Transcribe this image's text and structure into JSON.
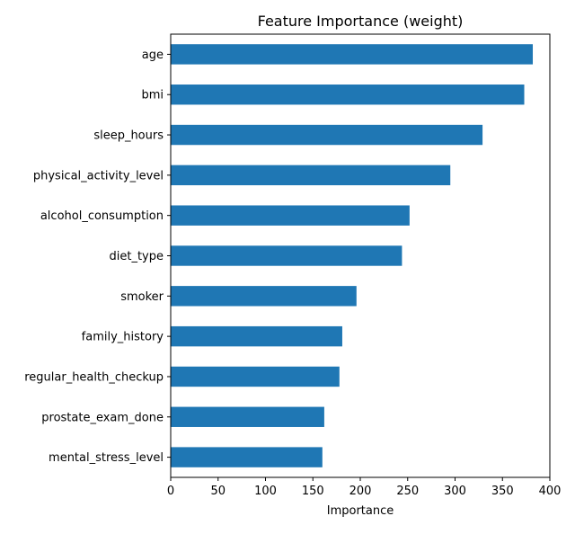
{
  "chart_data": {
    "type": "bar",
    "orientation": "horizontal",
    "title": "Feature Importance (weight)",
    "xlabel": "Importance",
    "ylabel": "",
    "categories": [
      "age",
      "bmi",
      "sleep_hours",
      "physical_activity_level",
      "alcohol_consumption",
      "diet_type",
      "smoker",
      "family_history",
      "regular_health_checkup",
      "prostate_exam_done",
      "mental_stress_level"
    ],
    "values": [
      382,
      373,
      329,
      295,
      252,
      244,
      196,
      181,
      178,
      162,
      160
    ],
    "xlim": [
      0,
      400
    ],
    "xticks": [
      0,
      50,
      100,
      150,
      200,
      250,
      300,
      350,
      400
    ],
    "grid": false,
    "bar_color": "#1f77b4"
  }
}
